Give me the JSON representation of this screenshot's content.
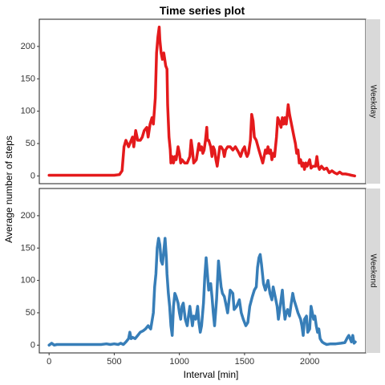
{
  "chart_data": {
    "type": "line",
    "title": "Time series plot",
    "xlabel": "Interval [min]",
    "ylabel": "Average number of steps",
    "xlim": [
      -75,
      2430
    ],
    "ylim": [
      -12,
      242
    ],
    "xticks": [
      0,
      500,
      1000,
      1500,
      2000
    ],
    "yticks": [
      0,
      50,
      100,
      150,
      200
    ],
    "grid": false,
    "legend": "none",
    "panels": [
      {
        "name": "Weekday",
        "color": "#e41a1c",
        "points": [
          [
            0,
            1
          ],
          [
            100,
            1
          ],
          [
            200,
            1
          ],
          [
            300,
            1
          ],
          [
            400,
            1
          ],
          [
            500,
            1
          ],
          [
            540,
            2
          ],
          [
            560,
            8
          ],
          [
            575,
            45
          ],
          [
            590,
            55
          ],
          [
            610,
            45
          ],
          [
            620,
            50
          ],
          [
            640,
            60
          ],
          [
            650,
            45
          ],
          [
            665,
            70
          ],
          [
            680,
            55
          ],
          [
            700,
            55
          ],
          [
            715,
            60
          ],
          [
            730,
            70
          ],
          [
            750,
            75
          ],
          [
            760,
            60
          ],
          [
            775,
            80
          ],
          [
            790,
            90
          ],
          [
            800,
            80
          ],
          [
            815,
            120
          ],
          [
            825,
            190
          ],
          [
            835,
            215
          ],
          [
            845,
            230
          ],
          [
            850,
            210
          ],
          [
            860,
            190
          ],
          [
            870,
            180
          ],
          [
            880,
            190
          ],
          [
            895,
            170
          ],
          [
            905,
            165
          ],
          [
            910,
            110
          ],
          [
            920,
            60
          ],
          [
            930,
            40
          ],
          [
            935,
            20
          ],
          [
            945,
            30
          ],
          [
            955,
            20
          ],
          [
            965,
            30
          ],
          [
            975,
            25
          ],
          [
            990,
            45
          ],
          [
            1000,
            35
          ],
          [
            1010,
            20
          ],
          [
            1020,
            25
          ],
          [
            1040,
            20
          ],
          [
            1060,
            20
          ],
          [
            1080,
            30
          ],
          [
            1090,
            55
          ],
          [
            1100,
            40
          ],
          [
            1110,
            20
          ],
          [
            1130,
            25
          ],
          [
            1150,
            50
          ],
          [
            1160,
            40
          ],
          [
            1170,
            45
          ],
          [
            1180,
            35
          ],
          [
            1190,
            40
          ],
          [
            1200,
            55
          ],
          [
            1210,
            75
          ],
          [
            1215,
            55
          ],
          [
            1225,
            55
          ],
          [
            1240,
            45
          ],
          [
            1250,
            30
          ],
          [
            1260,
            45
          ],
          [
            1270,
            40
          ],
          [
            1280,
            25
          ],
          [
            1290,
            15
          ],
          [
            1300,
            30
          ],
          [
            1310,
            45
          ],
          [
            1320,
            45
          ],
          [
            1335,
            40
          ],
          [
            1345,
            30
          ],
          [
            1355,
            40
          ],
          [
            1370,
            45
          ],
          [
            1390,
            45
          ],
          [
            1410,
            40
          ],
          [
            1430,
            45
          ],
          [
            1450,
            38
          ],
          [
            1470,
            30
          ],
          [
            1485,
            40
          ],
          [
            1500,
            45
          ],
          [
            1510,
            35
          ],
          [
            1520,
            30
          ],
          [
            1530,
            35
          ],
          [
            1545,
            55
          ],
          [
            1555,
            95
          ],
          [
            1565,
            85
          ],
          [
            1575,
            60
          ],
          [
            1590,
            55
          ],
          [
            1610,
            40
          ],
          [
            1625,
            30
          ],
          [
            1640,
            20
          ],
          [
            1650,
            30
          ],
          [
            1660,
            40
          ],
          [
            1670,
            35
          ],
          [
            1680,
            45
          ],
          [
            1690,
            35
          ],
          [
            1700,
            40
          ],
          [
            1710,
            25
          ],
          [
            1720,
            35
          ],
          [
            1730,
            30
          ],
          [
            1745,
            60
          ],
          [
            1755,
            90
          ],
          [
            1765,
            85
          ],
          [
            1780,
            75
          ],
          [
            1790,
            90
          ],
          [
            1800,
            80
          ],
          [
            1810,
            90
          ],
          [
            1820,
            80
          ],
          [
            1835,
            110
          ],
          [
            1845,
            95
          ],
          [
            1855,
            85
          ],
          [
            1870,
            70
          ],
          [
            1880,
            60
          ],
          [
            1890,
            50
          ],
          [
            1900,
            35
          ],
          [
            1910,
            40
          ],
          [
            1920,
            20
          ],
          [
            1930,
            25
          ],
          [
            1940,
            15
          ],
          [
            1950,
            20
          ],
          [
            1960,
            10
          ],
          [
            1970,
            20
          ],
          [
            1980,
            15
          ],
          [
            2000,
            25
          ],
          [
            2010,
            12
          ],
          [
            2025,
            15
          ],
          [
            2045,
            15
          ],
          [
            2055,
            30
          ],
          [
            2065,
            15
          ],
          [
            2075,
            10
          ],
          [
            2090,
            15
          ],
          [
            2110,
            10
          ],
          [
            2130,
            12
          ],
          [
            2150,
            5
          ],
          [
            2170,
            8
          ],
          [
            2190,
            5
          ],
          [
            2210,
            3
          ],
          [
            2230,
            6
          ],
          [
            2250,
            3
          ],
          [
            2275,
            3
          ],
          [
            2300,
            2
          ],
          [
            2320,
            1
          ],
          [
            2345,
            0
          ]
        ]
      },
      {
        "name": "Weekend",
        "color": "#377eb8",
        "points": [
          [
            0,
            0
          ],
          [
            20,
            3
          ],
          [
            40,
            0
          ],
          [
            60,
            1
          ],
          [
            100,
            1
          ],
          [
            150,
            1
          ],
          [
            200,
            1
          ],
          [
            250,
            1
          ],
          [
            300,
            1
          ],
          [
            350,
            1
          ],
          [
            400,
            1
          ],
          [
            440,
            2
          ],
          [
            470,
            1
          ],
          [
            500,
            2
          ],
          [
            530,
            1
          ],
          [
            550,
            3
          ],
          [
            570,
            1
          ],
          [
            590,
            5
          ],
          [
            610,
            10
          ],
          [
            620,
            20
          ],
          [
            630,
            10
          ],
          [
            640,
            12
          ],
          [
            660,
            10
          ],
          [
            680,
            15
          ],
          [
            700,
            20
          ],
          [
            720,
            22
          ],
          [
            740,
            25
          ],
          [
            760,
            30
          ],
          [
            780,
            25
          ],
          [
            800,
            50
          ],
          [
            810,
            90
          ],
          [
            820,
            110
          ],
          [
            830,
            150
          ],
          [
            840,
            165
          ],
          [
            850,
            155
          ],
          [
            860,
            130
          ],
          [
            870,
            125
          ],
          [
            880,
            145
          ],
          [
            890,
            165
          ],
          [
            900,
            135
          ],
          [
            905,
            110
          ],
          [
            915,
            80
          ],
          [
            925,
            60
          ],
          [
            935,
            30
          ],
          [
            945,
            15
          ],
          [
            955,
            60
          ],
          [
            965,
            80
          ],
          [
            975,
            75
          ],
          [
            990,
            65
          ],
          [
            1000,
            50
          ],
          [
            1010,
            40
          ],
          [
            1020,
            60
          ],
          [
            1030,
            65
          ],
          [
            1045,
            40
          ],
          [
            1060,
            30
          ],
          [
            1070,
            45
          ],
          [
            1080,
            60
          ],
          [
            1090,
            45
          ],
          [
            1100,
            30
          ],
          [
            1110,
            45
          ],
          [
            1125,
            40
          ],
          [
            1140,
            60
          ],
          [
            1150,
            35
          ],
          [
            1160,
            20
          ],
          [
            1170,
            30
          ],
          [
            1185,
            65
          ],
          [
            1195,
            105
          ],
          [
            1205,
            135
          ],
          [
            1215,
            110
          ],
          [
            1225,
            85
          ],
          [
            1240,
            95
          ],
          [
            1250,
            75
          ],
          [
            1260,
            50
          ],
          [
            1270,
            30
          ],
          [
            1285,
            70
          ],
          [
            1300,
            130
          ],
          [
            1310,
            110
          ],
          [
            1320,
            90
          ],
          [
            1330,
            80
          ],
          [
            1345,
            75
          ],
          [
            1360,
            60
          ],
          [
            1370,
            50
          ],
          [
            1390,
            85
          ],
          [
            1410,
            80
          ],
          [
            1420,
            55
          ],
          [
            1440,
            60
          ],
          [
            1460,
            70
          ],
          [
            1475,
            50
          ],
          [
            1490,
            40
          ],
          [
            1510,
            30
          ],
          [
            1525,
            35
          ],
          [
            1540,
            60
          ],
          [
            1560,
            75
          ],
          [
            1575,
            85
          ],
          [
            1590,
            90
          ],
          [
            1600,
            120
          ],
          [
            1610,
            135
          ],
          [
            1620,
            140
          ],
          [
            1630,
            125
          ],
          [
            1645,
            95
          ],
          [
            1660,
            85
          ],
          [
            1680,
            100
          ],
          [
            1695,
            80
          ],
          [
            1710,
            70
          ],
          [
            1720,
            90
          ],
          [
            1735,
            75
          ],
          [
            1750,
            60
          ],
          [
            1760,
            40
          ],
          [
            1770,
            55
          ],
          [
            1790,
            85
          ],
          [
            1800,
            60
          ],
          [
            1810,
            40
          ],
          [
            1820,
            50
          ],
          [
            1830,
            55
          ],
          [
            1845,
            45
          ],
          [
            1855,
            60
          ],
          [
            1870,
            80
          ],
          [
            1880,
            70
          ],
          [
            1895,
            60
          ],
          [
            1910,
            50
          ],
          [
            1930,
            40
          ],
          [
            1940,
            30
          ],
          [
            1950,
            15
          ],
          [
            1960,
            40
          ],
          [
            1975,
            45
          ],
          [
            1985,
            20
          ],
          [
            2000,
            25
          ],
          [
            2010,
            60
          ],
          [
            2020,
            50
          ],
          [
            2030,
            40
          ],
          [
            2040,
            45
          ],
          [
            2050,
            30
          ],
          [
            2060,
            20
          ],
          [
            2070,
            25
          ],
          [
            2080,
            10
          ],
          [
            2095,
            5
          ],
          [
            2110,
            3
          ],
          [
            2130,
            1
          ],
          [
            2160,
            2
          ],
          [
            2200,
            2
          ],
          [
            2240,
            3
          ],
          [
            2270,
            4
          ],
          [
            2290,
            12
          ],
          [
            2300,
            15
          ],
          [
            2310,
            10
          ],
          [
            2320,
            5
          ],
          [
            2330,
            15
          ],
          [
            2340,
            3
          ],
          [
            2350,
            5
          ]
        ]
      }
    ]
  }
}
